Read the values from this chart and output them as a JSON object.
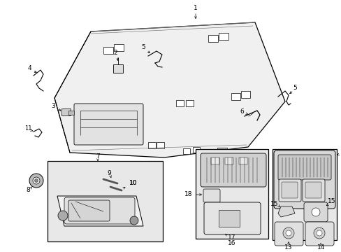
{
  "bg": "#ffffff",
  "lc": "#000000",
  "figw": 4.89,
  "figh": 3.6,
  "dpi": 100,
  "hl_face": "#f0f0f0",
  "box_face": "#e4e4e4",
  "part_face": "#d8d8d8",
  "part_face2": "#c8c8c8"
}
